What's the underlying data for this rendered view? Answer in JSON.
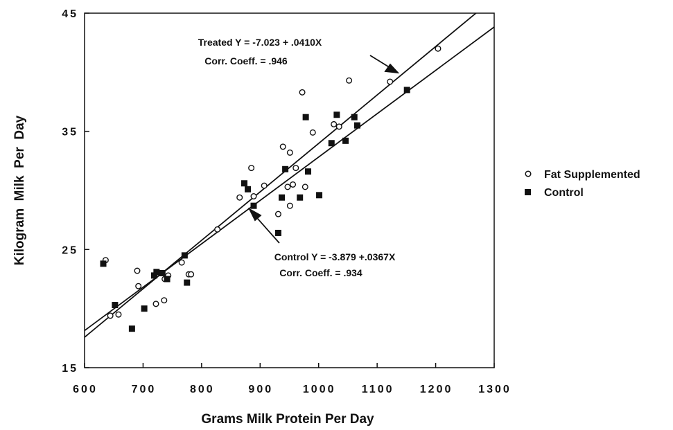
{
  "chart_data": {
    "type": "scatter",
    "xlabel": "Grams Milk Protein Per Day",
    "ylabel": "Kilogram  Milk  Per  Day",
    "xlim": [
      600,
      1300
    ],
    "ylim": [
      15,
      45
    ],
    "xticks": [
      600,
      700,
      800,
      900,
      1000,
      1100,
      1200,
      1300
    ],
    "yticks": [
      15,
      25,
      35,
      45
    ],
    "grid": false,
    "legend_placement": "right",
    "series": [
      {
        "name": "Fat Supplemented",
        "marker": "open-circle",
        "points": [
          [
            636,
            24.1
          ],
          [
            644,
            19.4
          ],
          [
            658,
            19.5
          ],
          [
            690,
            23.2
          ],
          [
            692,
            21.9
          ],
          [
            722,
            20.4
          ],
          [
            736,
            20.7
          ],
          [
            737,
            22.5
          ],
          [
            743,
            22.8
          ],
          [
            766,
            23.9
          ],
          [
            778,
            22.9
          ],
          [
            782,
            22.9
          ],
          [
            827,
            26.7
          ],
          [
            865,
            29.4
          ],
          [
            885,
            31.9
          ],
          [
            889,
            29.5
          ],
          [
            907,
            30.4
          ],
          [
            931,
            28.0
          ],
          [
            939,
            33.7
          ],
          [
            947,
            30.3
          ],
          [
            951,
            33.2
          ],
          [
            951,
            28.7
          ],
          [
            956,
            30.5
          ],
          [
            961,
            31.9
          ],
          [
            972,
            38.3
          ],
          [
            977,
            30.3
          ],
          [
            990,
            34.9
          ],
          [
            1026,
            35.6
          ],
          [
            1035,
            35.4
          ],
          [
            1052,
            39.3
          ],
          [
            1122,
            39.2
          ],
          [
            1204,
            42.0
          ]
        ]
      },
      {
        "name": "Control",
        "marker": "filled-square",
        "points": [
          [
            632,
            23.8
          ],
          [
            652,
            20.3
          ],
          [
            681,
            18.3
          ],
          [
            702,
            20.0
          ],
          [
            719,
            22.8
          ],
          [
            723,
            23.1
          ],
          [
            733,
            23.0
          ],
          [
            741,
            22.5
          ],
          [
            771,
            24.5
          ],
          [
            775,
            22.2
          ],
          [
            873,
            30.6
          ],
          [
            879,
            30.1
          ],
          [
            889,
            28.7
          ],
          [
            931,
            26.4
          ],
          [
            937,
            29.4
          ],
          [
            943,
            31.8
          ],
          [
            968,
            29.4
          ],
          [
            978,
            36.2
          ],
          [
            982,
            31.6
          ],
          [
            1001,
            29.6
          ],
          [
            1022,
            34.0
          ],
          [
            1031,
            36.4
          ],
          [
            1046,
            34.2
          ],
          [
            1061,
            36.2
          ],
          [
            1066,
            35.5
          ],
          [
            1151,
            38.5
          ]
        ]
      }
    ],
    "regression_lines": [
      {
        "name": "Treated",
        "intercept": -7.023,
        "slope": 0.041
      },
      {
        "name": "Control",
        "intercept": -3.879,
        "slope": 0.0367
      }
    ],
    "annotations": {
      "treated_eq": "Treated Y = -7.023 + .0410X",
      "treated_corr": "Corr. Coeff. = .946",
      "control_eq": "Control Y = -3.879 +.0367X",
      "control_corr": "Corr. Coeff. = .934"
    }
  }
}
